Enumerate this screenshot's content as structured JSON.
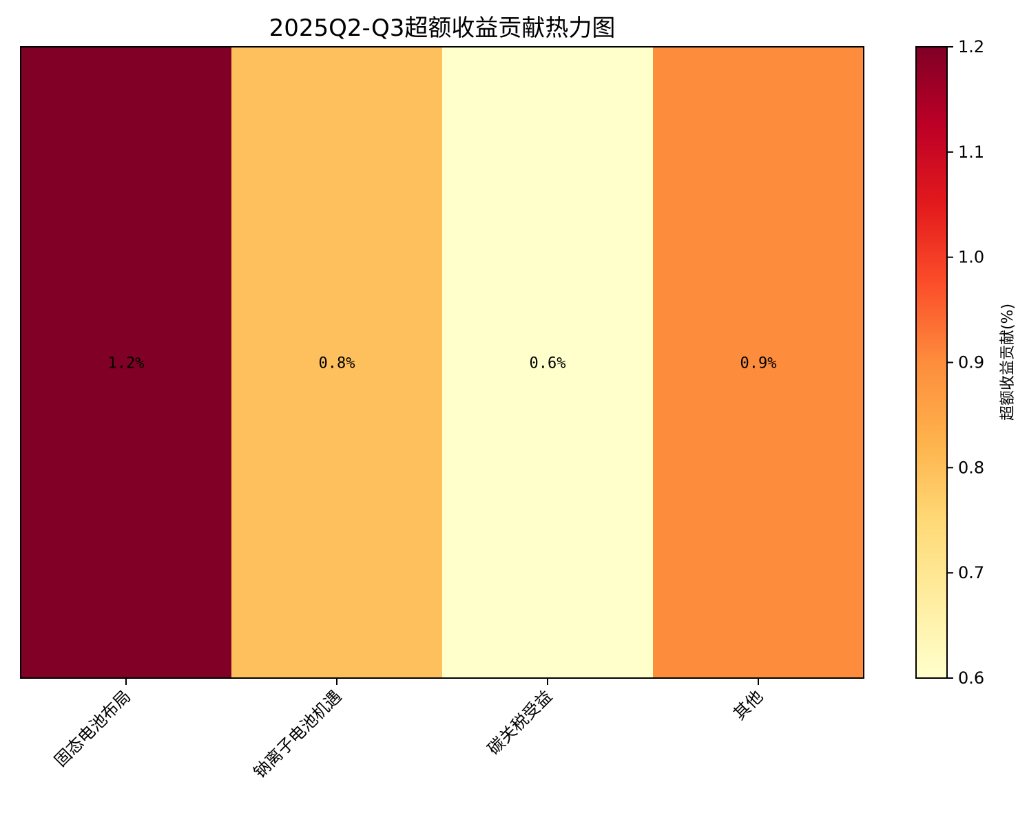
{
  "chart_data": {
    "type": "heatmap",
    "title": "2025Q2-Q3超额收益贡献热力图",
    "categories": [
      "固态电池布局",
      "钠离子电池机遇",
      "碳关税受益",
      "其他"
    ],
    "values": [
      1.2,
      0.8,
      0.6,
      0.9
    ],
    "cell_labels": [
      "1.2%",
      "0.8%",
      "0.6%",
      "0.9%"
    ],
    "colormap": "YlOrRd",
    "colorbar": {
      "label": "超额收益贡献(%)",
      "range": [
        0.6,
        1.2
      ],
      "ticks": [
        0.6,
        0.7,
        0.8,
        0.9,
        1.0,
        1.1,
        1.2
      ],
      "tick_labels": [
        "0.6",
        "0.7",
        "0.8",
        "0.9",
        "1.0",
        "1.1",
        "1.2"
      ]
    },
    "colors": {
      "1.2": "#800026",
      "0.9": "#fd8d3c",
      "0.8": "#fec05c",
      "0.6": "#ffffcc"
    },
    "grid": false,
    "legend": "colorbar-right"
  }
}
